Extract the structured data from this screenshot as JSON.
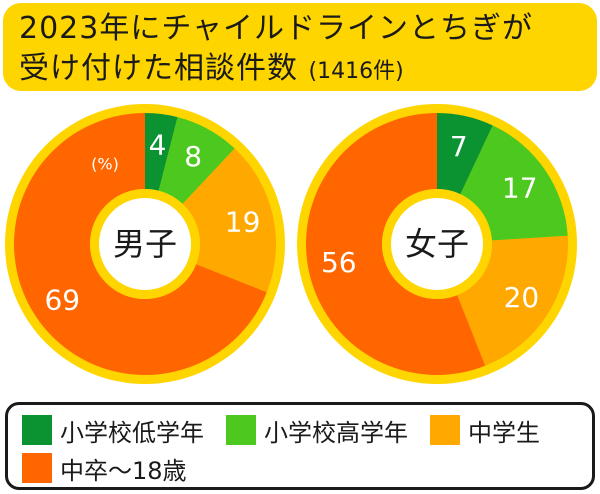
{
  "title": {
    "line1": "2023年にチャイルドラインとちぎが",
    "line2": "受け付けた相談件数",
    "line2_sub": "(1416件)"
  },
  "chart_data": [
    {
      "type": "pie",
      "title": "",
      "center_label": "男子",
      "unit_label": "(%)",
      "categories": [
        "小学校低学年",
        "小学校高学年",
        "中学生",
        "中卒〜18歳"
      ],
      "values": [
        4,
        8,
        19,
        69
      ]
    },
    {
      "type": "pie",
      "title": "",
      "center_label": "女子",
      "unit_label": "",
      "categories": [
        "小学校低学年",
        "小学校高学年",
        "中学生",
        "中卒〜18歳"
      ],
      "values": [
        7,
        17,
        20,
        56
      ]
    }
  ],
  "colors": {
    "小学校低学年": "#0b9331",
    "小学校高学年": "#4cc81e",
    "中学生": "#ffa800",
    "中卒〜18歳": "#ff6600",
    "ring": "#ffd500",
    "text": "#1a1a1a"
  },
  "legend": {
    "row1": [
      {
        "label": "小学校低学年",
        "color": "#0b9331"
      },
      {
        "label": "小学校高学年",
        "color": "#4cc81e"
      },
      {
        "label": "中学生",
        "color": "#ffa800"
      }
    ],
    "row2": [
      {
        "label": "中卒〜18歳",
        "color": "#ff6600"
      }
    ]
  }
}
